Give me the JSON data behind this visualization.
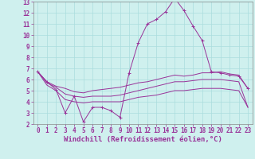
{
  "title": "",
  "xlabel": "Windchill (Refroidissement éolien,°C)",
  "ylabel": "",
  "bg_color": "#cff0ee",
  "grid_color": "#aadddd",
  "line_color": "#993399",
  "spine_color": "#888888",
  "xlim": [
    -0.5,
    23.5
  ],
  "ylim": [
    2,
    13
  ],
  "xticks": [
    0,
    1,
    2,
    3,
    4,
    5,
    6,
    7,
    8,
    9,
    10,
    11,
    12,
    13,
    14,
    15,
    16,
    17,
    18,
    19,
    20,
    21,
    22,
    23
  ],
  "yticks": [
    2,
    3,
    4,
    5,
    6,
    7,
    8,
    9,
    10,
    11,
    12,
    13
  ],
  "x": [
    0,
    1,
    2,
    3,
    4,
    5,
    6,
    7,
    8,
    9,
    10,
    11,
    12,
    13,
    14,
    15,
    16,
    17,
    18,
    19,
    20,
    21,
    22,
    23
  ],
  "line1_y": [
    6.7,
    5.8,
    5.1,
    3.0,
    4.5,
    2.2,
    3.5,
    3.5,
    3.2,
    2.6,
    6.6,
    9.3,
    11.0,
    11.4,
    12.1,
    13.3,
    12.2,
    10.8,
    9.5,
    6.7,
    6.6,
    6.4,
    6.3,
    5.2
  ],
  "line2_y": [
    6.7,
    5.8,
    5.4,
    5.2,
    4.9,
    4.8,
    5.0,
    5.1,
    5.2,
    5.3,
    5.5,
    5.7,
    5.8,
    6.0,
    6.2,
    6.4,
    6.3,
    6.4,
    6.6,
    6.6,
    6.7,
    6.5,
    6.4,
    5.2
  ],
  "line3_y": [
    6.7,
    5.7,
    5.3,
    4.7,
    4.5,
    4.4,
    4.5,
    4.5,
    4.5,
    4.6,
    4.8,
    5.0,
    5.2,
    5.4,
    5.6,
    5.8,
    5.8,
    5.9,
    6.0,
    6.0,
    6.0,
    5.9,
    5.8,
    3.5
  ],
  "line4_y": [
    6.7,
    5.5,
    5.0,
    4.2,
    4.0,
    3.9,
    4.0,
    4.0,
    4.0,
    4.0,
    4.2,
    4.4,
    4.5,
    4.6,
    4.8,
    5.0,
    5.0,
    5.1,
    5.2,
    5.2,
    5.2,
    5.1,
    5.0,
    3.5
  ],
  "tick_fontsize": 5.5,
  "xlabel_fontsize": 6.5,
  "lw": 0.7,
  "marker_size": 2.5
}
